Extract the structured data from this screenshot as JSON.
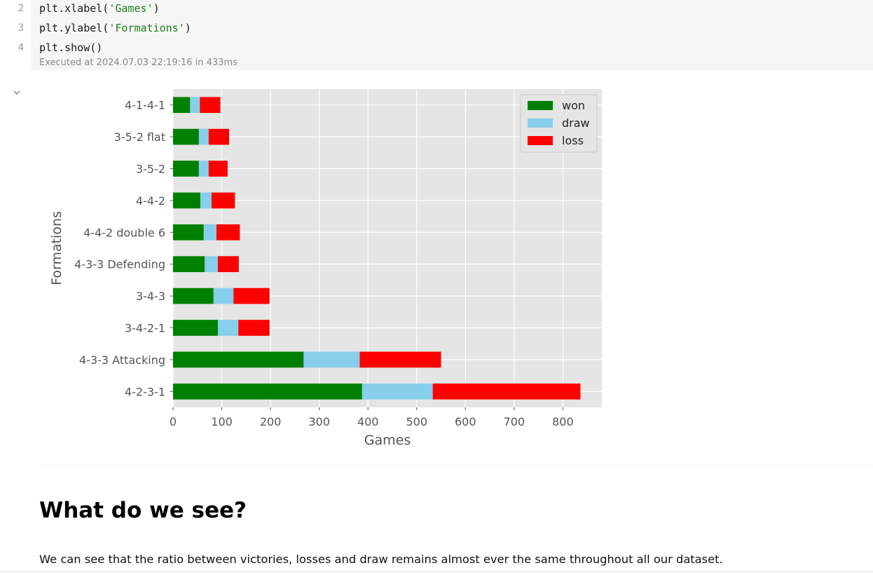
{
  "code": {
    "lines": [
      {
        "num": "2",
        "pre": "plt.xlabel(",
        "str": "'Games'",
        "post": ")"
      },
      {
        "num": "3",
        "pre": "plt.ylabel(",
        "str": "'Formations'",
        "post": ")"
      },
      {
        "num": "4",
        "pre": "plt.show()",
        "str": "",
        "post": ""
      }
    ],
    "executed": "Executed at 2024.07.03 22:19:16 in 433ms"
  },
  "icons": {
    "collapse": "chevron-down-icon"
  },
  "chart_data": {
    "type": "bar",
    "orientation": "horizontal",
    "stacked": true,
    "categories": [
      "4-1-4-1",
      "3-5-2 flat",
      "3-5-2",
      "4-4-2",
      "4-4-2 double 6",
      "4-3-3 Defending",
      "3-4-3",
      "3-4-2-1",
      "4-3-3 Attacking",
      "4-2-3-1"
    ],
    "series": [
      {
        "name": "won",
        "color": "#008000",
        "values": [
          35,
          53,
          53,
          56,
          63,
          65,
          83,
          92,
          268,
          388
        ]
      },
      {
        "name": "draw",
        "color": "#87ceeb",
        "values": [
          20,
          20,
          20,
          23,
          26,
          27,
          41,
          42,
          115,
          145
        ]
      },
      {
        "name": "loss",
        "color": "#ff0000",
        "values": [
          42,
          42,
          39,
          48,
          48,
          43,
          74,
          64,
          167,
          303
        ]
      }
    ],
    "xlabel": "Games",
    "ylabel": "Formations",
    "xticks": [
      0,
      100,
      200,
      300,
      400,
      500,
      600,
      700,
      800
    ],
    "xlim": [
      0,
      880
    ],
    "grid": true,
    "legend": "top-right",
    "background": "#e5e5e5"
  },
  "markdown": {
    "heading": "What do we see?",
    "paragraph": "We can see that the ratio between victories, losses and draw remains almost ever the same throughout all our dataset."
  }
}
